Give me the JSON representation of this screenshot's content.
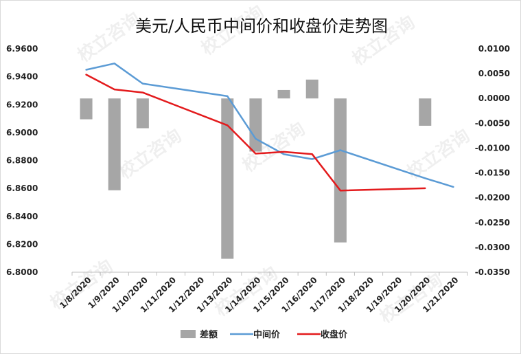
{
  "chart_data": {
    "type": "bar+line",
    "title": "美元/人民币中间价和收盘价走势图",
    "categories": [
      "1/8/2020",
      "1/9/2020",
      "1/10/2020",
      "1/11/2020",
      "1/12/2020",
      "1/13/2020",
      "1/14/2020",
      "1/15/2020",
      "1/16/2020",
      "1/17/2020",
      "1/18/2020",
      "1/19/2020",
      "1/20/2020",
      "1/21/2020"
    ],
    "left_axis": {
      "min": 6.8,
      "max": 6.96,
      "ticks": [
        "6.9600",
        "6.9400",
        "6.9200",
        "6.9000",
        "6.8800",
        "6.8600",
        "6.8400",
        "6.8200",
        "6.8000"
      ]
    },
    "right_axis": {
      "min": -0.035,
      "max": 0.01,
      "ticks": [
        "0.0100",
        "0.0050",
        "0.0000",
        "-0.0050",
        "-0.0100",
        "-0.0150",
        "-0.0200",
        "-0.0250",
        "-0.0300",
        "-0.0350"
      ]
    },
    "series": [
      {
        "name": "差额",
        "type": "bar",
        "axis": "right",
        "color": "#a6a6a6",
        "values": [
          -0.0042,
          -0.0185,
          -0.006,
          null,
          null,
          -0.0323,
          -0.0107,
          0.0017,
          0.0038,
          -0.029,
          null,
          null,
          -0.0055,
          null
        ]
      },
      {
        "name": "中间价",
        "type": "line",
        "axis": "left",
        "color": "#5b9bd5",
        "values": [
          6.945,
          6.9495,
          6.9351,
          null,
          null,
          6.9261,
          6.8956,
          6.8845,
          6.881,
          6.8874,
          null,
          null,
          6.8673,
          6.8611
        ]
      },
      {
        "name": "收盘价",
        "type": "line",
        "axis": "left",
        "color": "#e31a1c",
        "values": [
          6.9415,
          6.9309,
          6.9287,
          null,
          null,
          6.9052,
          6.8849,
          6.8862,
          6.8846,
          6.8585,
          null,
          null,
          6.8601,
          null
        ]
      }
    ],
    "legend": {
      "position": "bottom"
    },
    "grid": false
  },
  "watermark": "校立咨询"
}
